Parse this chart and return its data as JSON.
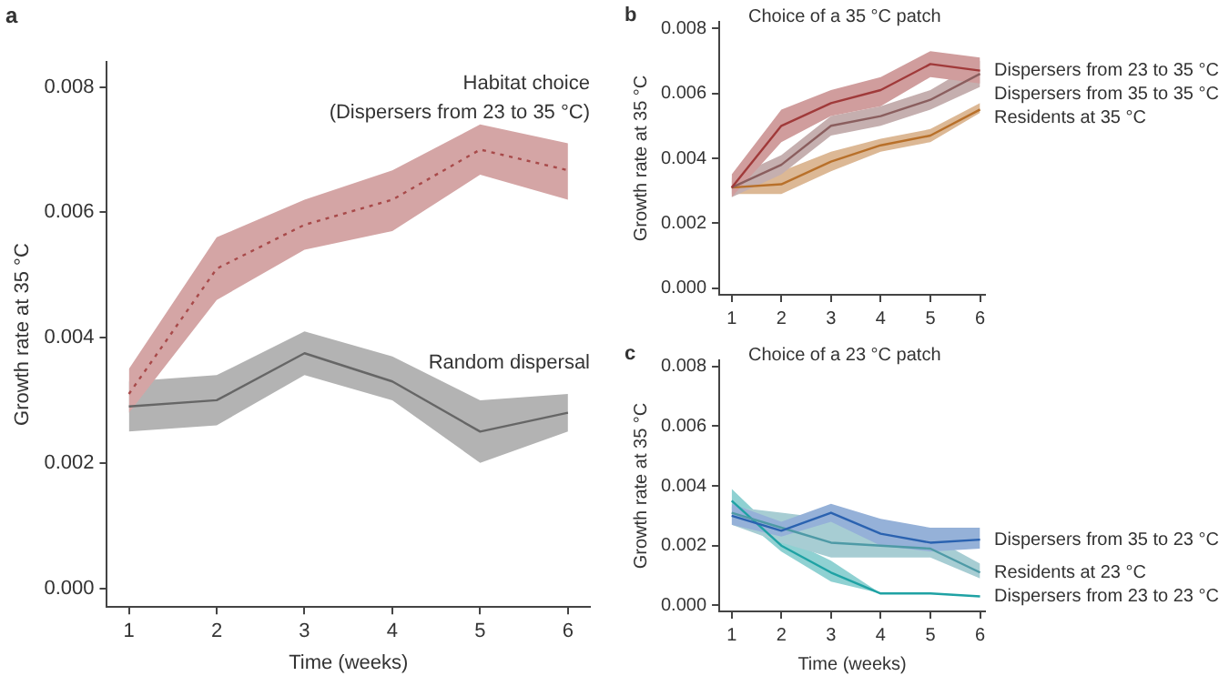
{
  "chart_data": [
    {
      "type": "line",
      "annotations": [
        "a"
      ],
      "xlabel": "Time (weeks)",
      "ylabel": "Growth rate at 35 °C",
      "x": [
        1,
        2,
        3,
        4,
        5,
        6
      ],
      "xlim": [
        0.75,
        6.25
      ],
      "xticks": [
        1,
        2,
        3,
        4,
        5,
        6
      ],
      "ylim": [
        -0.0003,
        0.0084
      ],
      "yticks": [
        {
          "value": 0,
          "label": "0.000"
        },
        {
          "value": 0.002,
          "label": "0.002"
        },
        {
          "value": 0.004,
          "label": "0.004"
        },
        {
          "value": 0.006,
          "label": "0.006"
        },
        {
          "value": 0.008,
          "label": "0.008"
        }
      ],
      "series": [
        {
          "name": "Habitat choice (Dispersers from 23 to 35 °C)",
          "color": "#a84a4a",
          "line_style": "dotted",
          "values": [
            0.0031,
            0.0051,
            0.0058,
            0.0062,
            0.007,
            0.00667
          ],
          "lower": [
            0.0028,
            0.0046,
            0.0054,
            0.0057,
            0.0066,
            0.0062
          ],
          "upper": [
            0.0035,
            0.0056,
            0.0062,
            0.00667,
            0.0074,
            0.0071
          ]
        },
        {
          "name": "Random dispersal",
          "color": "#666666",
          "line_style": "solid",
          "values": [
            0.0029,
            0.003,
            0.00375,
            0.0033,
            0.0025,
            0.0028
          ],
          "lower": [
            0.0025,
            0.0026,
            0.0034,
            0.003,
            0.002,
            0.0025
          ],
          "upper": [
            0.0033,
            0.0034,
            0.0041,
            0.0037,
            0.003,
            0.0031
          ]
        }
      ]
    },
    {
      "type": "line",
      "annotations": [
        "b"
      ],
      "title": "Choice of a 35 °C patch",
      "ylabel": "Growth rate at 35 °C",
      "x": [
        1,
        2,
        3,
        4,
        5,
        6
      ],
      "xlim": [
        0.75,
        6.1
      ],
      "xticks": [
        1,
        2,
        3,
        4,
        5,
        6
      ],
      "ylim": [
        -0.0002,
        0.0082
      ],
      "yticks": [
        {
          "value": 0,
          "label": "0.000"
        },
        {
          "value": 0.002,
          "label": "0.002"
        },
        {
          "value": 0.004,
          "label": "0.004"
        },
        {
          "value": 0.006,
          "label": "0.006"
        },
        {
          "value": 0.008,
          "label": "0.008"
        }
      ],
      "series": [
        {
          "name": "Dispersers from 23 to 35 °C",
          "color": "#a03a3a",
          "line_style": "solid",
          "values": [
            0.0031,
            0.005,
            0.0057,
            0.0061,
            0.0069,
            0.0067
          ],
          "lower": [
            0.0028,
            0.0045,
            0.0053,
            0.0056,
            0.0065,
            0.0063
          ],
          "upper": [
            0.0035,
            0.0055,
            0.0061,
            0.0065,
            0.0073,
            0.0071
          ]
        },
        {
          "name": "Dispersers from 35 to 35 °C",
          "color": "#8a5e5e",
          "line_style": "solid",
          "values": [
            0.0031,
            0.0038,
            0.005,
            0.0053,
            0.0058,
            0.0066
          ],
          "lower": [
            0.0028,
            0.0035,
            0.0047,
            0.005,
            0.0055,
            0.0062
          ],
          "upper": [
            0.0034,
            0.0041,
            0.0053,
            0.0056,
            0.0061,
            0.007
          ]
        },
        {
          "name": "Residents at 35 °C",
          "color": "#b8702a",
          "line_style": "solid",
          "values": [
            0.0031,
            0.0032,
            0.0039,
            0.0044,
            0.0047,
            0.0055
          ],
          "lower": [
            0.0029,
            0.0029,
            0.0036,
            0.0042,
            0.0045,
            0.0054
          ],
          "upper": [
            0.0033,
            0.0036,
            0.0042,
            0.0046,
            0.0049,
            0.0057
          ]
        }
      ]
    },
    {
      "type": "line",
      "annotations": [
        "c"
      ],
      "title": "Choice of a 23 °C patch",
      "xlabel": "Time (weeks)",
      "ylabel": "Growth rate at 35 °C",
      "x": [
        1,
        2,
        3,
        4,
        5,
        6
      ],
      "xlim": [
        0.75,
        6.1
      ],
      "xticks": [
        1,
        2,
        3,
        4,
        5,
        6
      ],
      "ylim": [
        -0.0002,
        0.0082
      ],
      "yticks": [
        {
          "value": 0,
          "label": "0.000"
        },
        {
          "value": 0.002,
          "label": "0.002"
        },
        {
          "value": 0.004,
          "label": "0.004"
        },
        {
          "value": 0.006,
          "label": "0.006"
        },
        {
          "value": 0.008,
          "label": "0.008"
        }
      ],
      "series": [
        {
          "name": "Dispersers from 35 to 23 °C",
          "color": "#2a62b0",
          "line_style": "solid",
          "values": [
            0.003,
            0.0025,
            0.0031,
            0.0024,
            0.0021,
            0.0022
          ],
          "lower": [
            0.0027,
            0.0023,
            0.0028,
            0.002,
            0.0018,
            0.0019
          ],
          "upper": [
            0.0034,
            0.0028,
            0.0034,
            0.0029,
            0.0026,
            0.0026
          ]
        },
        {
          "name": "Residents at 23 °C",
          "color": "#4e9aa6",
          "line_style": "solid",
          "values": [
            0.0031,
            0.0026,
            0.0021,
            0.002,
            0.0019,
            0.0011
          ],
          "lower": [
            0.0027,
            0.0021,
            0.0016,
            0.0016,
            0.0016,
            0.0009
          ],
          "upper": [
            0.0033,
            0.0031,
            0.0029,
            0.0023,
            0.0023,
            0.0014
          ]
        },
        {
          "name": "Dispersers from 23 to 23 °C",
          "color": "#1fa2a4",
          "line_style": "solid",
          "values": [
            0.0035,
            0.002,
            0.0011,
            0.0004,
            0.0004,
            0.0003
          ],
          "lower": [
            0.0032,
            0.0018,
            0.0008,
            0.0004,
            0.0004,
            0.0003
          ],
          "upper": [
            0.0039,
            0.0023,
            0.0015,
            0.0004,
            0.0004,
            0.0003
          ]
        }
      ]
    }
  ]
}
